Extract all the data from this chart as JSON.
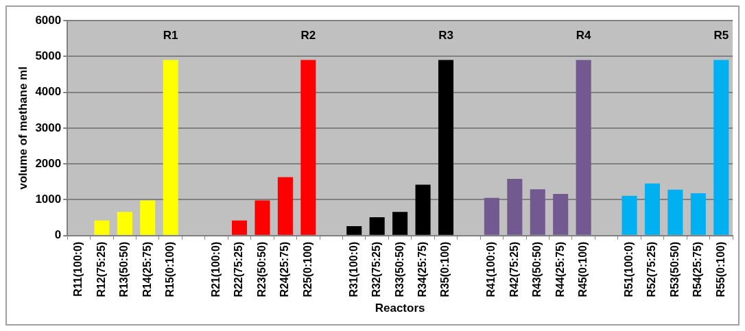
{
  "chart_data": {
    "type": "bar",
    "xlabel": "Reactors",
    "ylabel": "volume of methane ml",
    "categories": [
      "R11(100:0)",
      "R12(75:25)",
      "R13(50:50)",
      "R14(25:75)",
      "R15(0:100)",
      null,
      "R21(100:0)",
      "R22(75:25)",
      "R23(50:50)",
      "R24(25:75)",
      "R25(0:100)",
      null,
      "R31(100:0)",
      "R32(75:25)",
      "R33(50:50)",
      "R34(25:75)",
      "R35(0:100)",
      null,
      "R41(100:0)",
      "R42(75:25)",
      "R43(50:50)",
      "R44(25:75)",
      "R45(0:100)",
      null,
      "R51(100:0)",
      "R52(75:25)",
      "R53(50:50)",
      "R54(25:75)",
      "R55(0:100)"
    ],
    "values": [
      0,
      420,
      660,
      980,
      4900,
      null,
      0,
      420,
      980,
      1630,
      4900,
      null,
      260,
      510,
      660,
      1420,
      4900,
      null,
      1050,
      1580,
      1290,
      1160,
      4900,
      null,
      1110,
      1450,
      1280,
      1180,
      4900
    ],
    "colors": [
      "#ffff00",
      "#ffff00",
      "#ffff00",
      "#ffff00",
      "#ffff00",
      "#ffff00",
      "#ff0000",
      "#ff0000",
      "#ff0000",
      "#ff0000",
      "#ff0000",
      "#ff0000",
      "#000000",
      "#000000",
      "#000000",
      "#000000",
      "#000000",
      "#000000",
      "#72598f",
      "#72598f",
      "#72598f",
      "#72598f",
      "#72598f",
      "#72598f",
      "#00b0f0",
      "#00b0f0",
      "#00b0f0",
      "#00b0f0",
      "#00b0f0"
    ],
    "ylim": [
      0,
      6000
    ],
    "yticks": [
      0,
      1000,
      2000,
      3000,
      4000,
      5000,
      6000
    ],
    "grid": "y",
    "legend": false,
    "annotations": [
      "R1",
      "R2",
      "R3",
      "R4",
      "R5"
    ]
  }
}
